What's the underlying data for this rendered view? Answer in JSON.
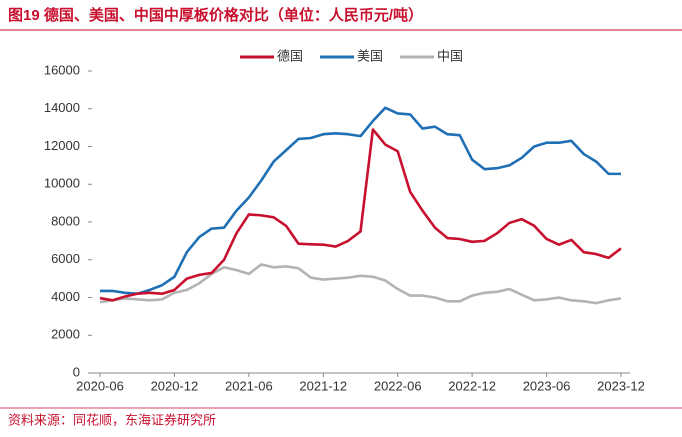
{
  "chart_data": {
    "type": "line",
    "title": "图19  德国、美国、中国中厚板价格对比（单位：人民币元/吨）",
    "source": "资料来源：同花顺，东海证券研究所",
    "categories": [
      "2020-06",
      null,
      null,
      null,
      null,
      null,
      "2020-12",
      null,
      null,
      null,
      null,
      null,
      "2021-06",
      null,
      null,
      null,
      null,
      null,
      "2021-12",
      null,
      null,
      null,
      null,
      null,
      "2022-06",
      null,
      null,
      null,
      null,
      null,
      "2022-12",
      null,
      null,
      null,
      null,
      null,
      "2023-06",
      null,
      null,
      null,
      null,
      null,
      "2023-12"
    ],
    "series": [
      {
        "name": "德国",
        "color": "#c8102e",
        "values": [
          3970,
          3850,
          4050,
          4200,
          4250,
          4200,
          4400,
          5000,
          5200,
          5300,
          6000,
          7400,
          8400,
          8350,
          8250,
          7800,
          6850,
          6820,
          6800,
          6700,
          7000,
          7500,
          12900,
          12100,
          11750,
          9600,
          8600,
          7700,
          7150,
          7100,
          6950,
          7000,
          7400,
          7950,
          8150,
          7800,
          7100,
          6800,
          7050,
          6400,
          6300,
          6100,
          6600
        ]
      },
      {
        "name": "美国",
        "color": "#1f6fb5",
        "values": [
          4350,
          4350,
          4250,
          4200,
          4400,
          4650,
          5100,
          6400,
          7200,
          7650,
          7700,
          8600,
          9300,
          10200,
          11200,
          11800,
          12400,
          12450,
          12650,
          12700,
          12650,
          12550,
          13350,
          14050,
          13750,
          13700,
          12950,
          13050,
          12650,
          12600,
          11300,
          10800,
          10850,
          11000,
          11400,
          12000,
          12200,
          12200,
          12300,
          11600,
          11200,
          10550,
          10550
        ]
      },
      {
        "name": "中国",
        "color": "#b3b3b3",
        "values": [
          3750,
          3850,
          3950,
          3900,
          3850,
          3900,
          4250,
          4400,
          4750,
          5250,
          5600,
          5450,
          5250,
          5750,
          5600,
          5650,
          5550,
          5050,
          4950,
          5000,
          5050,
          5150,
          5100,
          4900,
          4450,
          4100,
          4100,
          4000,
          3800,
          3800,
          4100,
          4250,
          4300,
          4450,
          4150,
          3850,
          3900,
          4000,
          3850,
          3800,
          3700,
          3850,
          3950
        ]
      }
    ],
    "ylim": [
      0,
      16000
    ],
    "yticks": [
      0,
      2000,
      4000,
      6000,
      8000,
      10000,
      12000,
      14000,
      16000
    ],
    "legend": "top"
  }
}
